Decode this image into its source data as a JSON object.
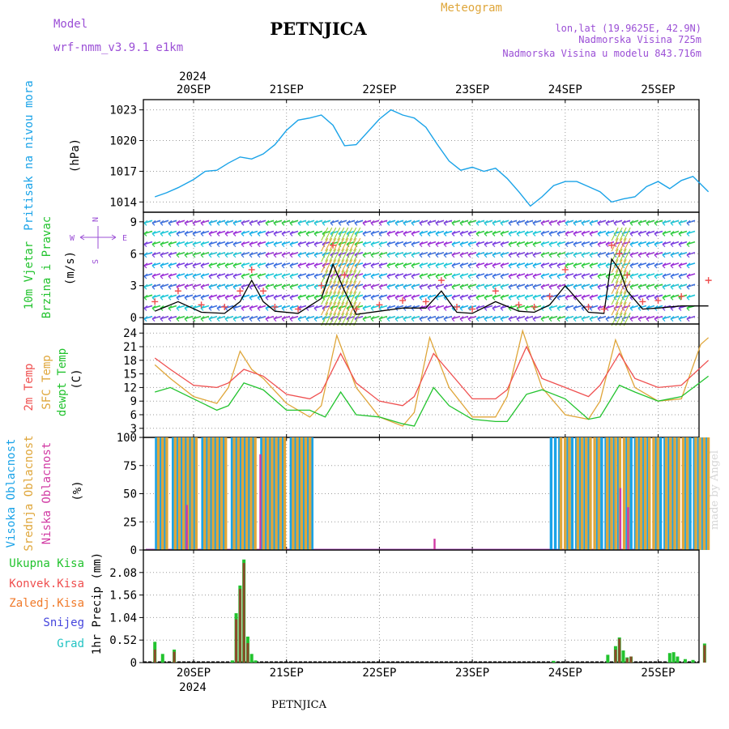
{
  "header": {
    "model_label": "Model",
    "model_name": "wrf-nmm_v3.9.1  e1km",
    "title": "PETNJICA",
    "meteogram": "Meteogram",
    "lonlat": "lon,lat (19.9625E, 42.9N)",
    "altitude": "Nadmorska Visina 725m",
    "model_altitude": "Nadmorska Visina u modelu 843.716m"
  },
  "footer": {
    "station": "PETNJICA",
    "credit": "made by Angel"
  },
  "colors": {
    "pressure": "#1aa3e8",
    "temp2m": "#ef4f4f",
    "sfc_temp": "#dfa63a",
    "dewpt": "#22c32e",
    "high_cloud": "#1aa3e8",
    "mid_cloud": "#dfa63a",
    "low_cloud": "#d13aa3",
    "rain_total": "#22c32e",
    "rain_conv": "#ef4f4f",
    "freezing": "#f07a2a",
    "snow": "#4444dd",
    "hail": "#22c3c3",
    "wind_speed": "#000000",
    "gust": "#ef4f4f",
    "compass": "#9b4fd6"
  },
  "time_axis": {
    "year": "2024",
    "days": [
      "20SEP",
      "21SEP",
      "22SEP",
      "23SEP",
      "24SEP",
      "25SEP"
    ],
    "start": "2024-09-19T14:00",
    "end": "2024-09-25T13:00"
  },
  "chart_data": [
    {
      "type": "line",
      "name": "pressure",
      "ylabel_lines": [
        "Pritisak na nivou mora",
        "(hPa)"
      ],
      "ylim": [
        1013,
        1024
      ],
      "yticks": [
        "1014",
        "1017",
        "1020",
        "1023"
      ],
      "series": [
        {
          "name": "Pritisak na nivou mora",
          "x": [
            "2024-09-19T14:00",
            "2024-09-19T17:00",
            "2024-09-19T20:00",
            "2024-09-20T00:00",
            "2024-09-20T03:00",
            "2024-09-20T06:00",
            "2024-09-20T09:00",
            "2024-09-20T12:00",
            "2024-09-20T15:00",
            "2024-09-20T18:00",
            "2024-09-20T21:00",
            "2024-09-21T00:00",
            "2024-09-21T03:00",
            "2024-09-21T06:00",
            "2024-09-21T09:00",
            "2024-09-21T12:00",
            "2024-09-21T15:00",
            "2024-09-21T18:00",
            "2024-09-22T00:00",
            "2024-09-22T03:00",
            "2024-09-22T06:00",
            "2024-09-22T09:00",
            "2024-09-22T12:00",
            "2024-09-22T15:00",
            "2024-09-22T18:00",
            "2024-09-22T21:00",
            "2024-09-23T00:00",
            "2024-09-23T03:00",
            "2024-09-23T06:00",
            "2024-09-23T09:00",
            "2024-09-23T12:00",
            "2024-09-23T15:00",
            "2024-09-23T18:00",
            "2024-09-23T21:00",
            "2024-09-24T00:00",
            "2024-09-24T03:00",
            "2024-09-24T06:00",
            "2024-09-24T09:00",
            "2024-09-24T12:00",
            "2024-09-24T15:00",
            "2024-09-24T18:00",
            "2024-09-24T21:00",
            "2024-09-25T00:00",
            "2024-09-25T03:00",
            "2024-09-25T06:00",
            "2024-09-25T09:00",
            "2024-09-25T13:00"
          ],
          "y": [
            1014.5,
            1014.9,
            1015.4,
            1016.2,
            1017.0,
            1017.1,
            1017.8,
            1018.4,
            1018.2,
            1018.7,
            1019.6,
            1021.0,
            1022.0,
            1022.2,
            1022.5,
            1021.5,
            1019.5,
            1019.6,
            1022.1,
            1023.0,
            1022.5,
            1022.2,
            1021.3,
            1019.6,
            1018.0,
            1017.1,
            1017.4,
            1017.0,
            1017.3,
            1016.3,
            1015.0,
            1013.6,
            1014.5,
            1015.6,
            1016.0,
            1016.0,
            1015.5,
            1015.0,
            1014.0,
            1014.3,
            1014.5,
            1015.5,
            1016.0,
            1015.3,
            1016.1,
            1016.5,
            1015.0
          ]
        }
      ]
    },
    {
      "type": "line",
      "name": "wind",
      "ylabel_lines": [
        "10m Vjetar",
        "Brzina i Pravac",
        "(m/s)"
      ],
      "compass": {
        "n": "N",
        "s": "S",
        "e": "E",
        "w": "W"
      },
      "ylim": [
        -0.6,
        9.9
      ],
      "yticks": [
        "0",
        "3",
        "6",
        "9"
      ],
      "series": [
        {
          "name": "Brzina",
          "x": [
            "2024-09-19T14:00",
            "2024-09-19T20:00",
            "2024-09-20T02:00",
            "2024-09-20T08:00",
            "2024-09-20T12:00",
            "2024-09-20T15:00",
            "2024-09-20T18:00",
            "2024-09-20T21:00",
            "2024-09-21T03:00",
            "2024-09-21T09:00",
            "2024-09-21T12:00",
            "2024-09-21T15:00",
            "2024-09-21T18:00",
            "2024-09-22T00:00",
            "2024-09-22T06:00",
            "2024-09-22T12:00",
            "2024-09-22T16:00",
            "2024-09-22T20:00",
            "2024-09-23T00:00",
            "2024-09-23T06:00",
            "2024-09-23T12:00",
            "2024-09-23T16:00",
            "2024-09-23T20:00",
            "2024-09-24T00:00",
            "2024-09-24T06:00",
            "2024-09-24T10:00",
            "2024-09-24T12:00",
            "2024-09-24T14:00",
            "2024-09-24T16:00",
            "2024-09-24T20:00",
            "2024-09-25T00:00",
            "2024-09-25T06:00",
            "2024-09-25T13:00"
          ],
          "y": [
            0.6,
            1.5,
            0.5,
            0.4,
            1.5,
            3.5,
            1.5,
            0.6,
            0.4,
            1.8,
            5.0,
            2.5,
            0.3,
            0.6,
            0.9,
            0.9,
            2.5,
            0.5,
            0.4,
            1.5,
            0.6,
            0.5,
            1.2,
            3.0,
            0.5,
            0.4,
            5.5,
            4.5,
            2.5,
            0.8,
            0.9,
            1.1,
            1.1
          ]
        },
        {
          "name": "Udari",
          "x": [
            "2024-09-19T14:00",
            "2024-09-19T20:00",
            "2024-09-20T02:00",
            "2024-09-20T08:00",
            "2024-09-20T12:00",
            "2024-09-20T15:00",
            "2024-09-20T18:00",
            "2024-09-20T21:00",
            "2024-09-21T03:00",
            "2024-09-21T09:00",
            "2024-09-21T12:00",
            "2024-09-21T15:00",
            "2024-09-21T18:00",
            "2024-09-22T00:00",
            "2024-09-22T06:00",
            "2024-09-22T12:00",
            "2024-09-22T16:00",
            "2024-09-22T20:00",
            "2024-09-23T00:00",
            "2024-09-23T06:00",
            "2024-09-23T12:00",
            "2024-09-23T16:00",
            "2024-09-23T20:00",
            "2024-09-24T00:00",
            "2024-09-24T06:00",
            "2024-09-24T10:00",
            "2024-09-24T12:00",
            "2024-09-24T14:00",
            "2024-09-24T16:00",
            "2024-09-24T20:00",
            "2024-09-25T00:00",
            "2024-09-25T06:00",
            "2024-09-25T13:00"
          ],
          "y": [
            1.5,
            2.5,
            1.2,
            1.0,
            2.5,
            4.5,
            2.5,
            1.0,
            0.8,
            3.0,
            6.8,
            4.0,
            0.8,
            1.2,
            1.6,
            1.5,
            3.5,
            1.0,
            0.8,
            2.5,
            1.2,
            1.0,
            2.0,
            4.5,
            1.0,
            0.8,
            6.8,
            6.0,
            4.0,
            1.5,
            1.6,
            2.0,
            3.5
          ]
        }
      ]
    },
    {
      "type": "line",
      "name": "temperature",
      "ylabel_lines": [
        "2m Temp",
        "SFC Temp",
        "dewpt Temp",
        "(C)"
      ],
      "ylim": [
        1,
        26
      ],
      "yticks": [
        "3",
        "6",
        "9",
        "12",
        "15",
        "18",
        "21",
        "24"
      ],
      "series": [
        {
          "name": "2m Temp",
          "x": [
            "2024-09-19T14:00",
            "2024-09-19T18:00",
            "2024-09-20T00:00",
            "2024-09-20T06:00",
            "2024-09-20T09:00",
            "2024-09-20T13:00",
            "2024-09-20T18:00",
            "2024-09-21T00:00",
            "2024-09-21T06:00",
            "2024-09-21T09:00",
            "2024-09-21T14:00",
            "2024-09-21T18:00",
            "2024-09-22T00:00",
            "2024-09-22T06:00",
            "2024-09-22T09:00",
            "2024-09-22T14:00",
            "2024-09-22T20:00",
            "2024-09-23T00:00",
            "2024-09-23T06:00",
            "2024-09-23T09:00",
            "2024-09-23T14:00",
            "2024-09-23T18:00",
            "2024-09-24T00:00",
            "2024-09-24T06:00",
            "2024-09-24T09:00",
            "2024-09-24T14:00",
            "2024-09-24T18:00",
            "2024-09-25T00:00",
            "2024-09-25T06:00",
            "2024-09-25T13:00"
          ],
          "y": [
            18.5,
            16.0,
            12.5,
            12.0,
            13.0,
            16.0,
            14.5,
            10.5,
            9.5,
            11.0,
            19.5,
            13.0,
            9.0,
            8.0,
            10.0,
            19.5,
            13.5,
            9.5,
            9.5,
            11.5,
            21.0,
            14.0,
            12.0,
            10.0,
            12.5,
            19.5,
            14.0,
            12.0,
            12.5,
            18.0
          ]
        },
        {
          "name": "SFC Temp",
          "x": [
            "2024-09-19T14:00",
            "2024-09-19T18:00",
            "2024-09-20T00:00",
            "2024-09-20T06:00",
            "2024-09-20T09:00",
            "2024-09-20T12:00",
            "2024-09-20T15:00",
            "2024-09-20T18:00",
            "2024-09-21T00:00",
            "2024-09-21T06:00",
            "2024-09-21T09:00",
            "2024-09-21T13:00",
            "2024-09-21T18:00",
            "2024-09-22T00:00",
            "2024-09-22T06:00",
            "2024-09-22T09:00",
            "2024-09-22T13:00",
            "2024-09-22T18:00",
            "2024-09-23T00:00",
            "2024-09-23T06:00",
            "2024-09-23T09:00",
            "2024-09-23T13:00",
            "2024-09-23T18:00",
            "2024-09-24T00:00",
            "2024-09-24T06:00",
            "2024-09-24T09:00",
            "2024-09-24T13:00",
            "2024-09-24T18:00",
            "2024-09-25T00:00",
            "2024-09-25T06:00",
            "2024-09-25T11:00",
            "2024-09-25T13:00"
          ],
          "y": [
            17.0,
            14.0,
            10.0,
            8.5,
            12.0,
            20.0,
            16.0,
            14.0,
            8.5,
            5.5,
            8.0,
            23.5,
            12.0,
            5.5,
            3.5,
            6.5,
            23.0,
            12.0,
            5.5,
            5.5,
            10.0,
            24.5,
            12.0,
            6.0,
            5.0,
            9.0,
            22.5,
            12.0,
            9.0,
            9.5,
            21.5,
            23.0
          ]
        },
        {
          "name": "dewpt Temp",
          "x": [
            "2024-09-19T14:00",
            "2024-09-19T18:00",
            "2024-09-20T00:00",
            "2024-09-20T06:00",
            "2024-09-20T09:00",
            "2024-09-20T13:00",
            "2024-09-20T18:00",
            "2024-09-21T00:00",
            "2024-09-21T06:00",
            "2024-09-21T10:00",
            "2024-09-21T14:00",
            "2024-09-21T18:00",
            "2024-09-22T00:00",
            "2024-09-22T06:00",
            "2024-09-22T09:00",
            "2024-09-22T14:00",
            "2024-09-22T18:00",
            "2024-09-23T00:00",
            "2024-09-23T06:00",
            "2024-09-23T09:00",
            "2024-09-23T14:00",
            "2024-09-23T18:00",
            "2024-09-24T00:00",
            "2024-09-24T06:00",
            "2024-09-24T09:00",
            "2024-09-24T14:00",
            "2024-09-24T18:00",
            "2024-09-25T00:00",
            "2024-09-25T06:00",
            "2024-09-25T13:00"
          ],
          "y": [
            11.0,
            12.0,
            9.5,
            7.0,
            8.0,
            13.0,
            11.5,
            7.0,
            7.0,
            5.5,
            11.0,
            6.0,
            5.5,
            4.0,
            3.5,
            12.0,
            8.0,
            5.0,
            4.5,
            4.5,
            10.5,
            11.5,
            9.5,
            5.0,
            5.5,
            12.5,
            11.0,
            9.0,
            10.0,
            14.5
          ]
        }
      ]
    },
    {
      "type": "bar",
      "name": "clouds",
      "ylabel_lines": [
        "Visoka Oblacnost",
        "Srednja Oblacnost",
        "Niska Oblacnost",
        "(%)"
      ],
      "ylim": [
        0,
        100
      ],
      "yticks": [
        "0",
        "25",
        "50",
        "75",
        "100"
      ],
      "series": [
        {
          "name": "Visoka Oblacnost",
          "segments": [
            {
              "from": "2024-09-19T14:00",
              "to": "2024-09-21T08:00",
              "value": 100
            },
            {
              "from": "2024-09-23T20:00",
              "to": "2024-09-25T13:00",
              "value": 100
            }
          ]
        },
        {
          "name": "Srednja Oblacnost",
          "segments": [
            {
              "from": "2024-09-19T14:00",
              "to": "2024-09-21T06:00",
              "value": 100
            },
            {
              "from": "2024-09-23T22:00",
              "to": "2024-09-25T13:00",
              "value": 100
            }
          ]
        },
        {
          "name": "Niska Oblacnost",
          "spikes": [
            {
              "x": "2024-09-20T17:00",
              "value": 85
            },
            {
              "x": "2024-09-19T22:00",
              "value": 40
            },
            {
              "x": "2024-09-24T14:00",
              "value": 55
            },
            {
              "x": "2024-09-24T16:00",
              "value": 38
            },
            {
              "x": "2024-09-22T14:00",
              "value": 10
            }
          ]
        }
      ]
    },
    {
      "type": "bar",
      "name": "precipitation",
      "ylabel_lines": [
        "1hr Precip (mm)"
      ],
      "ylim": [
        0,
        2.6
      ],
      "yticks": [
        "0",
        "0.52",
        "1.04",
        "1.56",
        "2.08"
      ],
      "legend": [
        "Ukupna Kisa",
        "Konvek.Kisa",
        "Zaledj.Kisa",
        "Snijeg",
        "Grad"
      ],
      "series": [
        {
          "name": "Ukupna Kisa",
          "x": [
            "2024-09-19T14:00",
            "2024-09-19T16:00",
            "2024-09-19T19:00",
            "2024-09-20T10:00",
            "2024-09-20T11:00",
            "2024-09-20T12:00",
            "2024-09-20T13:00",
            "2024-09-20T14:00",
            "2024-09-20T15:00",
            "2024-09-20T16:00",
            "2024-09-23T21:00",
            "2024-09-24T11:00",
            "2024-09-24T13:00",
            "2024-09-24T14:00",
            "2024-09-24T15:00",
            "2024-09-24T16:00",
            "2024-09-24T17:00",
            "2024-09-25T03:00",
            "2024-09-25T04:00",
            "2024-09-25T05:00",
            "2024-09-25T07:00",
            "2024-09-25T09:00",
            "2024-09-25T12:00"
          ],
          "y": [
            0.48,
            0.2,
            0.3,
            0.05,
            1.14,
            1.78,
            2.38,
            0.6,
            0.2,
            0.05,
            0.04,
            0.18,
            0.38,
            0.58,
            0.28,
            0.12,
            0.14,
            0.22,
            0.24,
            0.14,
            0.08,
            0.06,
            0.44
          ]
        },
        {
          "name": "Konvek.Kisa",
          "x": [
            "2024-09-19T14:00",
            "2024-09-19T19:00",
            "2024-09-20T11:00",
            "2024-09-20T12:00",
            "2024-09-20T13:00",
            "2024-09-20T14:00",
            "2024-09-24T13:00",
            "2024-09-24T14:00",
            "2024-09-24T16:00",
            "2024-09-24T17:00",
            "2024-09-25T12:00"
          ],
          "y": [
            0.3,
            0.25,
            1.0,
            1.7,
            2.3,
            0.45,
            0.3,
            0.55,
            0.1,
            0.14,
            0.4
          ]
        }
      ]
    }
  ]
}
